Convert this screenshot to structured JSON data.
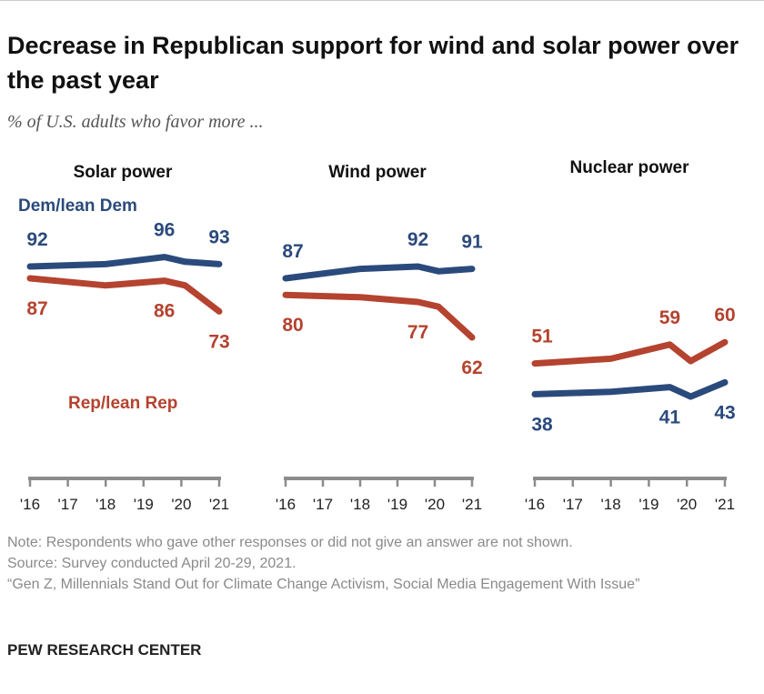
{
  "title": "Decrease in Republican support for wind and solar power over the past year",
  "subtitle": "% of U.S. adults who favor more ...",
  "colors": {
    "dem": "#2b4a7c",
    "rep": "#b4432f",
    "axis": "#8c8c8c"
  },
  "legend": {
    "dem": "Dem/lean Dem",
    "rep": "Rep/lean Rep"
  },
  "chart_data": [
    {
      "type": "line",
      "title": "Solar power",
      "x_ticks": [
        "'16",
        "'17",
        "'18",
        "'19",
        "'20",
        "'21"
      ],
      "x": [
        2016,
        2018,
        2019.55,
        2020.1,
        2021
      ],
      "series": [
        {
          "name": "Dem/lean Dem",
          "values": [
            92,
            93,
            96,
            94,
            93
          ],
          "labels": [
            "92",
            null,
            "96",
            null,
            "93"
          ]
        },
        {
          "name": "Rep/lean Rep",
          "values": [
            87,
            84,
            86,
            84,
            73
          ],
          "labels": [
            "87",
            null,
            "86",
            null,
            "73"
          ]
        }
      ]
    },
    {
      "type": "line",
      "title": "Wind power",
      "x_ticks": [
        "'16",
        "'17",
        "'18",
        "'19",
        "'20",
        "'21"
      ],
      "x": [
        2016,
        2018,
        2019.55,
        2020.1,
        2021
      ],
      "series": [
        {
          "name": "Dem/lean Dem",
          "values": [
            87,
            91,
            92,
            90,
            91
          ],
          "labels": [
            "87",
            null,
            "92",
            null,
            "91"
          ]
        },
        {
          "name": "Rep/lean Rep",
          "values": [
            80,
            79,
            77,
            75,
            62
          ],
          "labels": [
            "80",
            null,
            "77",
            null,
            "62"
          ]
        }
      ]
    },
    {
      "type": "line",
      "title": "Nuclear power",
      "x_ticks": [
        "'16",
        "'17",
        "'18",
        "'19",
        "'20",
        "'21"
      ],
      "x": [
        2016,
        2018,
        2019.55,
        2020.1,
        2021
      ],
      "series": [
        {
          "name": "Dem/lean Dem",
          "values": [
            38,
            39,
            41,
            37,
            43
          ],
          "labels": [
            "38",
            null,
            "41",
            null,
            "43"
          ]
        },
        {
          "name": "Rep/lean Rep",
          "values": [
            51,
            53,
            59,
            52,
            60
          ],
          "labels": [
            "51",
            null,
            "59",
            null,
            "60"
          ]
        }
      ]
    }
  ],
  "notes": [
    "Note: Respondents who gave other responses or did not give an answer are not shown.",
    "Source: Survey conducted April 20-29, 2021.",
    "“Gen Z, Millennials Stand Out for Climate Change Activism, Social Media Engagement With Issue”"
  ],
  "brand": "PEW RESEARCH CENTER"
}
